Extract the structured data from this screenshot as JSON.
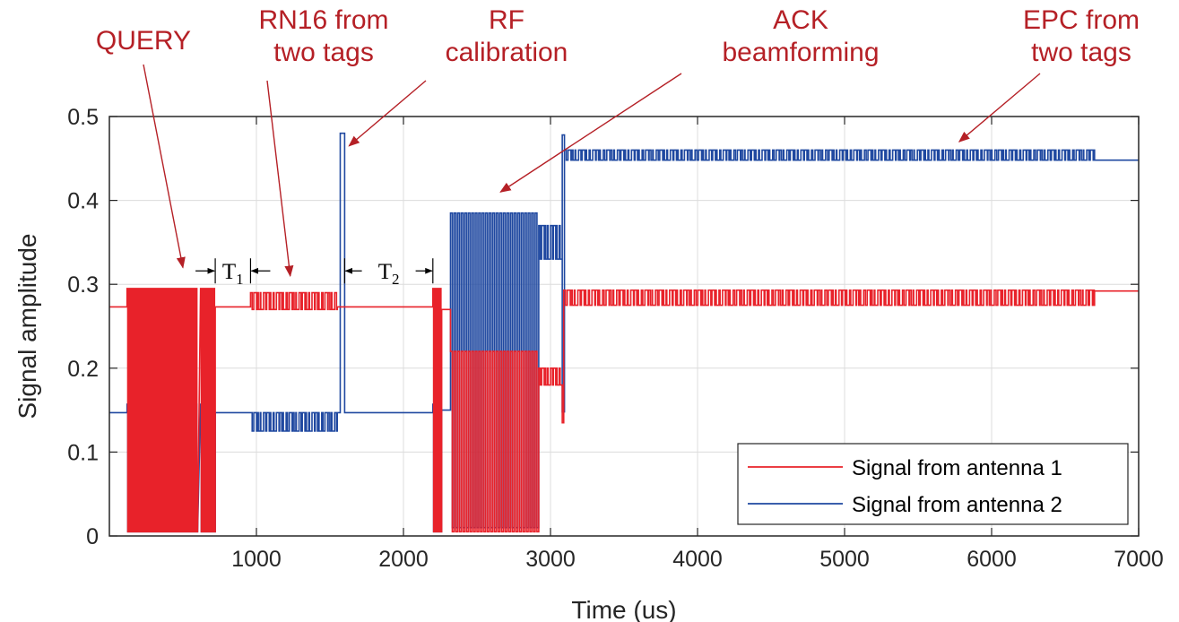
{
  "chart_data": {
    "type": "line",
    "title": "",
    "xlabel": "Time (us)",
    "ylabel": "Signal amplitude",
    "xlim": [
      0,
      7000
    ],
    "ylim": [
      0,
      0.5
    ],
    "xticks": [
      1000,
      2000,
      3000,
      4000,
      5000,
      6000,
      7000
    ],
    "xtick_labels": [
      "1000",
      "2000",
      "3000",
      "4000",
      "5000",
      "6000",
      "7000"
    ],
    "yticks": [
      0,
      0.1,
      0.2,
      0.3,
      0.4,
      0.5
    ],
    "ytick_labels": [
      "0",
      "0.1",
      "0.2",
      "0.3",
      "0.4",
      "0.5"
    ],
    "grid": true,
    "legend_position": "bottom-right",
    "series": [
      {
        "name": "Signal from antenna 1",
        "color": "#e8222a",
        "baseline": 0.273,
        "segments": [
          {
            "kind": "flat",
            "x0": 0,
            "x1": 120,
            "y": 0.273
          },
          {
            "kind": "pulse",
            "x0": 120,
            "x1": 600,
            "high": 0.295,
            "low": 0.005,
            "period": 10
          },
          {
            "kind": "pulse",
            "x0": 620,
            "x1": 720,
            "high": 0.295,
            "low": 0.005,
            "period": 10
          },
          {
            "kind": "flat",
            "x0": 720,
            "x1": 960,
            "y": 0.273
          },
          {
            "kind": "toggle",
            "x0": 960,
            "x1": 1550,
            "high": 0.29,
            "low": 0.27,
            "period": 22
          },
          {
            "kind": "flat",
            "x0": 1550,
            "x1": 1600,
            "y": 0.273
          },
          {
            "kind": "flat",
            "x0": 1600,
            "x1": 2200,
            "y": 0.273
          },
          {
            "kind": "pulse",
            "x0": 2200,
            "x1": 2260,
            "high": 0.295,
            "low": 0.005,
            "period": 10
          },
          {
            "kind": "flat",
            "x0": 2260,
            "x1": 2320,
            "y": 0.27
          },
          {
            "kind": "pulse",
            "x0": 2320,
            "x1": 2920,
            "high": 0.22,
            "low": 0.005,
            "period": 24
          },
          {
            "kind": "toggle",
            "x0": 2920,
            "x1": 3080,
            "high": 0.2,
            "low": 0.18,
            "period": 20
          },
          {
            "kind": "flat",
            "x0": 3080,
            "x1": 3090,
            "y": 0.135
          },
          {
            "kind": "toggle",
            "x0": 3090,
            "x1": 6700,
            "high": 0.293,
            "low": 0.275,
            "period": 24
          },
          {
            "kind": "flat",
            "x0": 6700,
            "x1": 7000,
            "y": 0.292
          }
        ]
      },
      {
        "name": "Signal from antenna 2",
        "color": "#1f48a0",
        "baseline": 0.147,
        "segments": [
          {
            "kind": "flat",
            "x0": 0,
            "x1": 120,
            "y": 0.147
          },
          {
            "kind": "pulse",
            "x0": 120,
            "x1": 600,
            "high": 0.157,
            "low": 0.005,
            "period": 10
          },
          {
            "kind": "pulse",
            "x0": 620,
            "x1": 720,
            "high": 0.157,
            "low": 0.005,
            "period": 10
          },
          {
            "kind": "flat",
            "x0": 720,
            "x1": 960,
            "y": 0.147
          },
          {
            "kind": "toggle",
            "x0": 960,
            "x1": 1550,
            "high": 0.147,
            "low": 0.125,
            "period": 22
          },
          {
            "kind": "flat",
            "x0": 1550,
            "x1": 1570,
            "y": 0.147
          },
          {
            "kind": "spike",
            "x0": 1570,
            "x1": 1600,
            "y": 0.48
          },
          {
            "kind": "flat",
            "x0": 1600,
            "x1": 2200,
            "y": 0.147
          },
          {
            "kind": "pulse",
            "x0": 2200,
            "x1": 2260,
            "high": 0.157,
            "low": 0.005,
            "period": 10
          },
          {
            "kind": "flat",
            "x0": 2260,
            "x1": 2320,
            "y": 0.15
          },
          {
            "kind": "pulse",
            "x0": 2320,
            "x1": 2920,
            "high": 0.385,
            "low": 0.01,
            "period": 24
          },
          {
            "kind": "toggle",
            "x0": 2920,
            "x1": 3080,
            "high": 0.37,
            "low": 0.33,
            "period": 20
          },
          {
            "kind": "spike",
            "x0": 3080,
            "x1": 3095,
            "y": 0.478
          },
          {
            "kind": "toggle",
            "x0": 3095,
            "x1": 6700,
            "high": 0.46,
            "low": 0.448,
            "period": 24
          },
          {
            "kind": "flat",
            "x0": 6700,
            "x1": 7000,
            "y": 0.448
          }
        ]
      }
    ],
    "annotations": [
      {
        "lines": [
          "QUERY"
        ],
        "color": "#b52026",
        "arrow_to": [
          500,
          0.32
        ]
      },
      {
        "lines": [
          "RN16 from",
          "two tags"
        ],
        "color": "#b52026",
        "arrow_to": [
          1230,
          0.31
        ]
      },
      {
        "lines": [
          "RF",
          "calibration"
        ],
        "color": "#b52026",
        "arrow_to": [
          1630,
          0.465
        ]
      },
      {
        "lines": [
          "ACK",
          "beamforming"
        ],
        "color": "#b52026",
        "arrow_to": [
          2660,
          0.41
        ]
      },
      {
        "lines": [
          "EPC from",
          "two tags"
        ],
        "color": "#b52026",
        "arrow_to": [
          5780,
          0.47
        ]
      }
    ],
    "intervals": [
      {
        "label": "T",
        "sub": "1",
        "x0": 720,
        "x1": 960,
        "y": 0.316
      },
      {
        "label": "T",
        "sub": "2",
        "x0": 1600,
        "x1": 2200,
        "y": 0.316
      }
    ]
  }
}
